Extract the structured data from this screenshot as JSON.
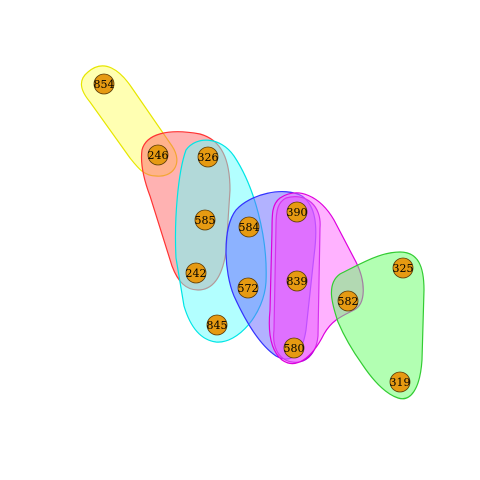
{
  "diagram": {
    "type": "hypergraph",
    "node_fill": "#e69a12",
    "node_stroke": "#5a3a06",
    "nodes": [
      {
        "id": "854",
        "label": "854"
      },
      {
        "id": "246",
        "label": "246"
      },
      {
        "id": "326",
        "label": "326"
      },
      {
        "id": "585",
        "label": "585"
      },
      {
        "id": "242",
        "label": "242"
      },
      {
        "id": "845",
        "label": "845"
      },
      {
        "id": "584",
        "label": "584"
      },
      {
        "id": "572",
        "label": "572"
      },
      {
        "id": "390",
        "label": "390"
      },
      {
        "id": "839",
        "label": "839"
      },
      {
        "id": "580",
        "label": "580"
      },
      {
        "id": "582",
        "label": "582"
      },
      {
        "id": "325",
        "label": "325"
      },
      {
        "id": "319",
        "label": "319"
      }
    ],
    "hyperedges": [
      {
        "id": "yellow-group",
        "color": "#ffff66",
        "stroke": "#e6e600",
        "members": [
          "854",
          "246"
        ]
      },
      {
        "id": "red-group",
        "color": "#ff6666",
        "stroke": "#ff3333",
        "members": [
          "246",
          "326",
          "585",
          "242"
        ]
      },
      {
        "id": "cyan-group",
        "color": "#66ffff",
        "stroke": "#00e5e5",
        "members": [
          "326",
          "585",
          "242",
          "845"
        ]
      },
      {
        "id": "blue-group",
        "color": "#6666ff",
        "stroke": "#3333ff",
        "members": [
          "584",
          "572",
          "390",
          "839",
          "580"
        ]
      },
      {
        "id": "purple-group",
        "color": "#cc44ff",
        "stroke": "#aa00dd",
        "members": [
          "390",
          "839",
          "580"
        ]
      },
      {
        "id": "magenta-group",
        "color": "#ff66ff",
        "stroke": "#dd00dd",
        "members": [
          "390",
          "839",
          "580",
          "582"
        ]
      },
      {
        "id": "green-group",
        "color": "#66ff66",
        "stroke": "#33cc33",
        "members": [
          "582",
          "325",
          "319"
        ]
      }
    ]
  }
}
